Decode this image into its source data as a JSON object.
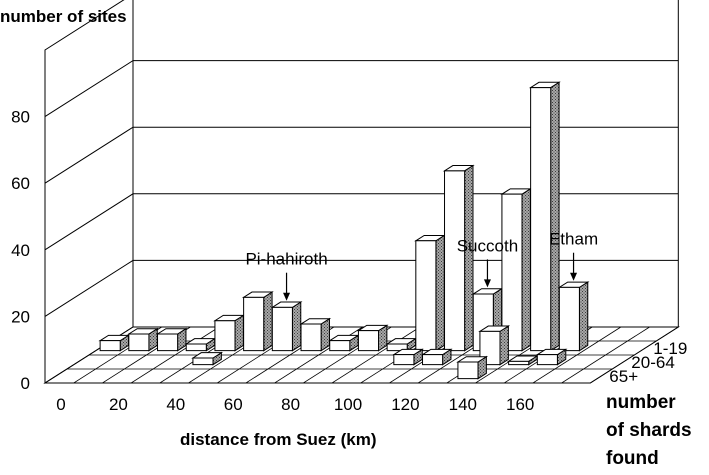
{
  "chart_data": {
    "type": "bar3d",
    "y_axis_title": "number of sites",
    "x_axis_title": "distance from Suez (km)",
    "depth_axis_title": [
      "number",
      "of shards",
      "found"
    ],
    "x_ticks": [
      "0",
      "20",
      "40",
      "60",
      "80",
      "100",
      "120",
      "140",
      "160"
    ],
    "y_ticks": [
      "0",
      "20",
      "40",
      "60",
      "80"
    ],
    "ylim": [
      0,
      100
    ],
    "bin_width_km": 10,
    "bin_starts_km": [
      0,
      10,
      20,
      30,
      40,
      50,
      60,
      70,
      80,
      90,
      100,
      110,
      120,
      130,
      140,
      150,
      160
    ],
    "series": [
      {
        "name": "1-19",
        "values": [
          3,
          5,
          5,
          2,
          9,
          16,
          13,
          8,
          3,
          6,
          2,
          33,
          54,
          17,
          47,
          79,
          19
        ]
      },
      {
        "name": "20-64",
        "values": [
          0,
          0,
          0,
          0,
          2,
          0,
          0,
          0,
          0,
          0,
          0,
          3,
          3,
          0,
          10,
          1,
          3
        ]
      },
      {
        "name": "65+",
        "values": [
          0,
          0,
          0,
          0,
          0,
          0,
          0,
          0,
          0,
          0,
          0,
          0,
          0,
          0,
          5,
          0,
          0
        ]
      }
    ],
    "annotations": [
      {
        "text": "Pi-hahiroth",
        "series": "1-19",
        "bin_km": 60
      },
      {
        "text": "Succoth",
        "series": "1-19",
        "bin_km": 130
      },
      {
        "text": "Etham",
        "series": "1-19",
        "bin_km": 160
      }
    ]
  }
}
